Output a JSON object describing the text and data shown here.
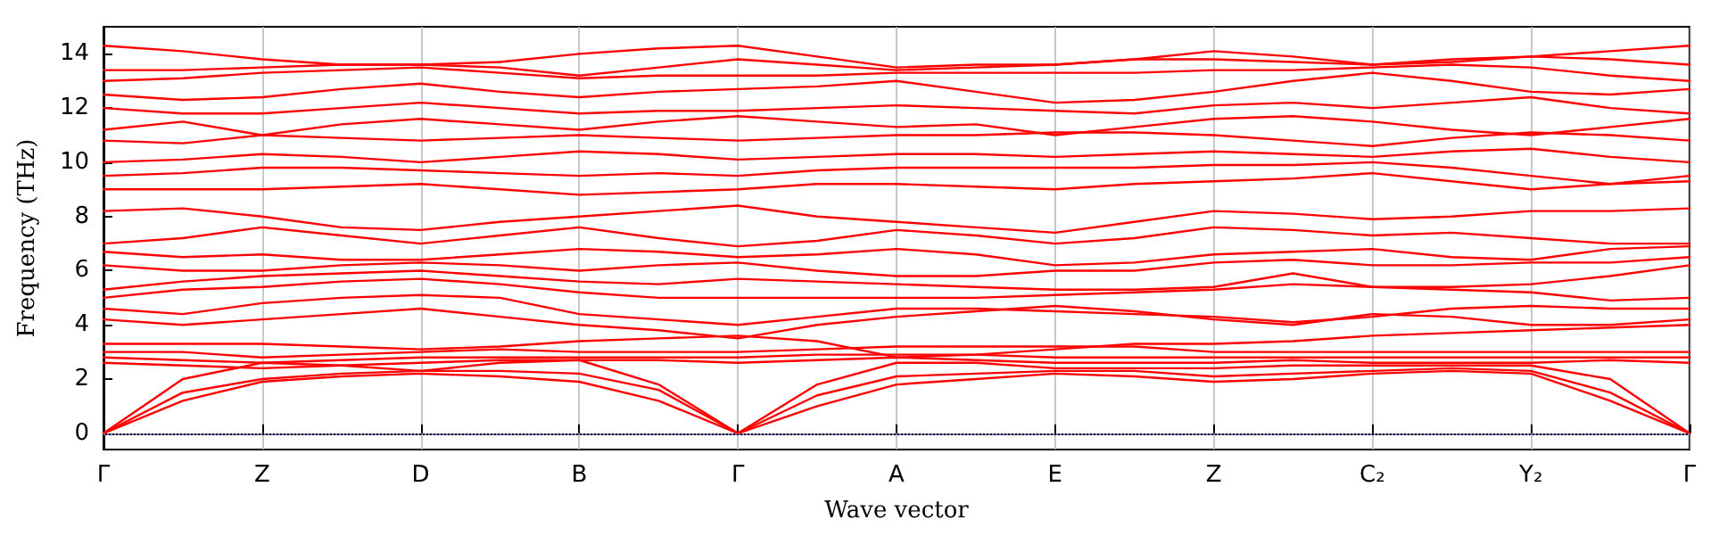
{
  "chart_data": {
    "type": "line",
    "xlabel": "Wave vector",
    "ylabel": "Frequency (THz)",
    "categories": [
      "Γ",
      null,
      "Z",
      null,
      "D",
      null,
      "B",
      null,
      "Γ",
      null,
      "A",
      null,
      "E",
      null,
      "Z",
      null,
      "C₂",
      null,
      "Y₂",
      null,
      "Γ"
    ],
    "ylim": [
      -0.6,
      15
    ],
    "yticks": [
      0,
      2,
      4,
      6,
      8,
      10,
      12,
      14
    ],
    "grid": "x",
    "marker": "none",
    "line_style": "solid",
    "ref_lines": [
      {
        "axis": "y",
        "value": 0,
        "color": "#8080c0",
        "line_style": "dotted"
      }
    ],
    "series": [
      {
        "color": "#ff0000",
        "values": [
          0,
          1.2,
          1.9,
          2.1,
          2.2,
          2.1,
          1.9,
          1.2,
          0,
          1.0,
          1.8,
          2.0,
          2.2,
          2.1,
          1.9,
          2.0,
          2.2,
          2.3,
          2.2,
          1.2,
          0
        ]
      },
      {
        "color": "#ff0000",
        "values": [
          0,
          1.5,
          2.0,
          2.2,
          2.3,
          2.3,
          2.2,
          1.6,
          0,
          1.4,
          2.1,
          2.2,
          2.3,
          2.3,
          2.1,
          2.2,
          2.3,
          2.4,
          2.3,
          1.5,
          0
        ]
      },
      {
        "color": "#ff0000",
        "values": [
          0,
          2.0,
          2.6,
          2.5,
          2.3,
          2.6,
          2.7,
          1.8,
          0,
          1.8,
          2.6,
          2.6,
          2.4,
          2.4,
          2.4,
          2.5,
          2.5,
          2.5,
          2.5,
          2.0,
          0
        ]
      },
      {
        "color": "#ff0000",
        "values": [
          2.6,
          2.5,
          2.4,
          2.5,
          2.6,
          2.7,
          2.7,
          2.7,
          2.6,
          2.7,
          2.8,
          2.7,
          2.6,
          2.6,
          2.6,
          2.7,
          2.6,
          2.6,
          2.6,
          2.7,
          2.6
        ]
      },
      {
        "color": "#ff0000",
        "values": [
          2.8,
          2.7,
          2.6,
          2.7,
          2.8,
          2.8,
          2.8,
          2.8,
          2.8,
          2.9,
          2.9,
          2.9,
          2.8,
          2.8,
          2.8,
          2.8,
          2.8,
          2.8,
          2.8,
          2.8,
          2.8
        ]
      },
      {
        "color": "#ff0000",
        "values": [
          3.0,
          3.0,
          2.8,
          2.9,
          3.0,
          3.1,
          3.0,
          3.0,
          3.0,
          3.1,
          3.2,
          3.2,
          3.2,
          3.2,
          3.0,
          3.0,
          3.0,
          3.0,
          3.0,
          3.0,
          3.0
        ]
      },
      {
        "color": "#ff0000",
        "values": [
          3.3,
          3.3,
          3.3,
          3.2,
          3.1,
          3.2,
          3.4,
          3.5,
          3.6,
          3.4,
          2.8,
          2.9,
          3.1,
          3.3,
          3.3,
          3.4,
          3.6,
          3.7,
          3.8,
          3.9,
          4.0
        ]
      },
      {
        "color": "#ff0000",
        "values": [
          4.2,
          4.0,
          4.2,
          4.4,
          4.6,
          4.3,
          4.0,
          3.8,
          3.5,
          4.0,
          4.3,
          4.5,
          4.7,
          4.5,
          4.2,
          4.0,
          4.4,
          4.3,
          4.0,
          4.0,
          4.2
        ]
      },
      {
        "color": "#ff0000",
        "values": [
          4.6,
          4.4,
          4.8,
          5.0,
          5.1,
          5.0,
          4.4,
          4.2,
          4.0,
          4.3,
          4.6,
          4.6,
          4.5,
          4.4,
          4.3,
          4.1,
          4.3,
          4.6,
          4.7,
          4.6,
          4.6
        ]
      },
      {
        "color": "#ff0000",
        "values": [
          5.0,
          5.3,
          5.4,
          5.6,
          5.7,
          5.5,
          5.2,
          5.0,
          5.0,
          5.0,
          5.0,
          5.0,
          5.1,
          5.2,
          5.3,
          5.5,
          5.4,
          5.3,
          5.2,
          4.9,
          5.0
        ]
      },
      {
        "color": "#ff0000",
        "values": [
          5.3,
          5.6,
          5.8,
          5.9,
          6.0,
          5.8,
          5.6,
          5.5,
          5.7,
          5.6,
          5.5,
          5.4,
          5.3,
          5.3,
          5.4,
          5.9,
          5.4,
          5.4,
          5.5,
          5.8,
          6.2
        ]
      },
      {
        "color": "#ff0000",
        "values": [
          6.2,
          6.0,
          6.0,
          6.2,
          6.3,
          6.2,
          6.0,
          6.2,
          6.3,
          6.0,
          5.8,
          5.8,
          6.0,
          6.0,
          6.3,
          6.4,
          6.2,
          6.2,
          6.3,
          6.3,
          6.5
        ]
      },
      {
        "color": "#ff0000",
        "values": [
          6.7,
          6.5,
          6.6,
          6.4,
          6.4,
          6.6,
          6.8,
          6.7,
          6.5,
          6.6,
          6.8,
          6.6,
          6.2,
          6.3,
          6.6,
          6.7,
          6.8,
          6.5,
          6.4,
          6.8,
          6.9
        ]
      },
      {
        "color": "#ff0000",
        "values": [
          7.0,
          7.2,
          7.6,
          7.3,
          7.0,
          7.3,
          7.6,
          7.2,
          6.9,
          7.1,
          7.5,
          7.3,
          7.0,
          7.2,
          7.6,
          7.5,
          7.3,
          7.4,
          7.2,
          7.0,
          7.0
        ]
      },
      {
        "color": "#ff0000",
        "values": [
          8.2,
          8.3,
          8.0,
          7.6,
          7.5,
          7.8,
          8.0,
          8.2,
          8.4,
          8.0,
          7.8,
          7.6,
          7.4,
          7.8,
          8.2,
          8.1,
          7.9,
          8.0,
          8.2,
          8.2,
          8.3
        ]
      },
      {
        "color": "#ff0000",
        "values": [
          9.0,
          9.0,
          9.0,
          9.1,
          9.2,
          9.0,
          8.8,
          8.9,
          9.0,
          9.2,
          9.2,
          9.1,
          9.0,
          9.2,
          9.3,
          9.4,
          9.6,
          9.3,
          9.0,
          9.2,
          9.5
        ]
      },
      {
        "color": "#ff0000",
        "values": [
          9.5,
          9.6,
          9.8,
          9.8,
          9.7,
          9.6,
          9.5,
          9.6,
          9.5,
          9.7,
          9.8,
          9.8,
          9.8,
          9.8,
          9.9,
          9.9,
          10.0,
          9.8,
          9.5,
          9.2,
          9.3
        ]
      },
      {
        "color": "#ff0000",
        "values": [
          10.0,
          10.1,
          10.3,
          10.2,
          10.0,
          10.2,
          10.4,
          10.3,
          10.1,
          10.2,
          10.3,
          10.3,
          10.2,
          10.3,
          10.4,
          10.3,
          10.2,
          10.4,
          10.5,
          10.2,
          10.0
        ]
      },
      {
        "color": "#ff0000",
        "values": [
          10.8,
          10.7,
          11.0,
          10.9,
          10.8,
          10.9,
          11.0,
          10.9,
          10.8,
          10.9,
          11.0,
          11.0,
          11.1,
          11.1,
          11.0,
          10.8,
          10.6,
          10.9,
          11.1,
          11.0,
          10.8
        ]
      },
      {
        "color": "#ff0000",
        "values": [
          11.2,
          11.5,
          11.0,
          11.4,
          11.6,
          11.4,
          11.2,
          11.5,
          11.7,
          11.5,
          11.3,
          11.4,
          11.0,
          11.3,
          11.6,
          11.7,
          11.5,
          11.2,
          11.0,
          11.3,
          11.6
        ]
      },
      {
        "color": "#ff0000",
        "values": [
          12.0,
          11.8,
          11.8,
          12.0,
          12.2,
          12.0,
          11.8,
          11.9,
          11.9,
          12.0,
          12.1,
          12.0,
          11.9,
          11.8,
          12.1,
          12.2,
          12.0,
          12.2,
          12.4,
          12.0,
          11.8
        ]
      },
      {
        "color": "#ff0000",
        "values": [
          12.5,
          12.3,
          12.4,
          12.7,
          12.9,
          12.6,
          12.4,
          12.6,
          12.7,
          12.8,
          13.0,
          12.6,
          12.2,
          12.3,
          12.6,
          13.0,
          13.3,
          13.0,
          12.6,
          12.5,
          12.7
        ]
      },
      {
        "color": "#ff0000",
        "values": [
          13.0,
          13.1,
          13.3,
          13.4,
          13.5,
          13.3,
          13.1,
          13.2,
          13.2,
          13.2,
          13.3,
          13.3,
          13.3,
          13.3,
          13.4,
          13.4,
          13.5,
          13.6,
          13.5,
          13.2,
          13.0
        ]
      },
      {
        "color": "#ff0000",
        "values": [
          13.4,
          13.4,
          13.5,
          13.6,
          13.6,
          13.5,
          13.2,
          13.5,
          13.8,
          13.6,
          13.4,
          13.5,
          13.6,
          13.8,
          13.8,
          13.7,
          13.6,
          13.8,
          13.9,
          13.8,
          13.6
        ]
      },
      {
        "color": "#ff0000",
        "values": [
          14.3,
          14.1,
          13.8,
          13.6,
          13.6,
          13.7,
          14.0,
          14.2,
          14.3,
          13.9,
          13.5,
          13.6,
          13.6,
          13.8,
          14.1,
          13.9,
          13.6,
          13.7,
          13.9,
          14.1,
          14.3
        ]
      }
    ]
  }
}
